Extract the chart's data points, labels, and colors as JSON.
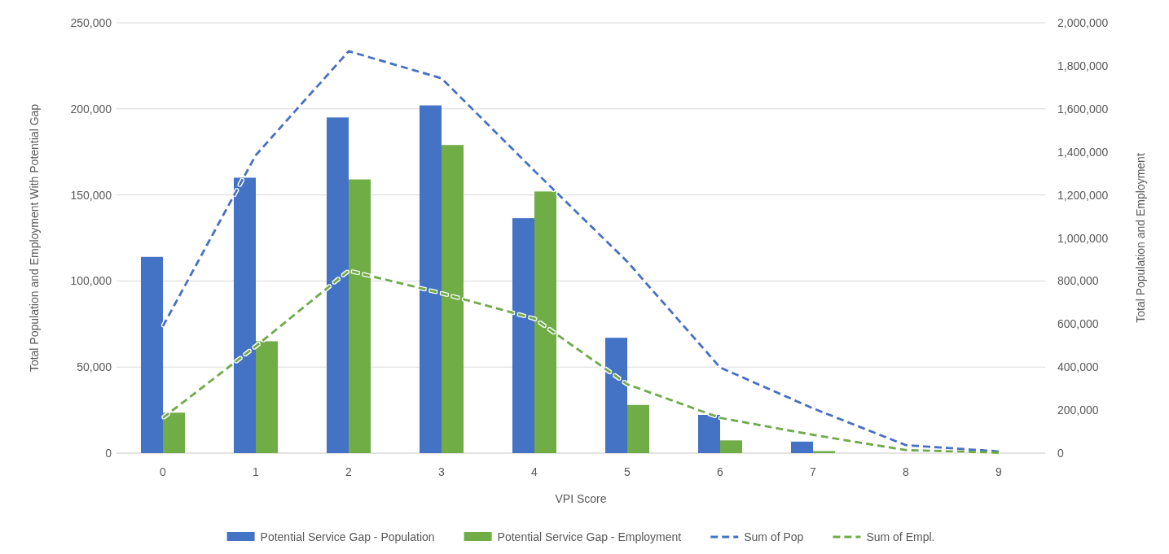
{
  "chart_data": {
    "type": "bar",
    "xlabel": "VPI Score",
    "ylabel": "Total Population and Employment With Potential Gap",
    "y2label": "Total Population and Employment",
    "categories": [
      "0",
      "1",
      "2",
      "3",
      "4",
      "5",
      "6",
      "7",
      "8",
      "9"
    ],
    "series": [
      {
        "name": "Potential Service Gap - Population",
        "color": "#4472c4",
        "values": [
          114000,
          160000,
          195000,
          202000,
          136500,
          67000,
          22200,
          6700,
          0,
          0
        ]
      },
      {
        "name": "Potential Service Gap - Employment",
        "color": "#70ad47",
        "values": [
          23500,
          65000,
          159000,
          179000,
          152000,
          28000,
          7400,
          1200,
          0,
          0
        ]
      },
      {
        "name": "Sum of Pop",
        "type": "line",
        "axis": "y2",
        "line_style": "dashed",
        "color": "#4472c4",
        "values": [
          590000,
          1385000,
          1868000,
          1742000,
          1312000,
          890000,
          398000,
          208000,
          37000,
          8000
        ]
      },
      {
        "name": "Sum of Empl.",
        "type": "line",
        "axis": "y2",
        "line_style": "dashed",
        "color": "#70ad47",
        "values": [
          164000,
          497000,
          848000,
          743000,
          625000,
          320000,
          164000,
          85000,
          14000,
          2000
        ]
      }
    ],
    "ylim": [
      0,
      250000
    ],
    "yticks": [
      0,
      {
        "value": 50000,
        "label": "50,000"
      },
      {
        "value": 100000,
        "label": "100,000"
      },
      {
        "value": 150000,
        "label": "150,000"
      },
      {
        "value": 200000,
        "label": "200,000"
      },
      {
        "value": 250000,
        "label": "250,000"
      }
    ],
    "y2lim": [
      0,
      2000000
    ],
    "y2ticks": [
      0,
      {
        "value": 200000,
        "label": "200,000"
      },
      {
        "value": 400000,
        "label": "400,000"
      },
      {
        "value": 600000,
        "label": "600,000"
      },
      {
        "value": 800000,
        "label": "800,000"
      },
      {
        "value": 1000000,
        "label": "1,000,000"
      },
      {
        "value": 1200000,
        "label": "1,200,000"
      },
      {
        "value": 1400000,
        "label": "1,400,000"
      },
      {
        "value": 1600000,
        "label": "1,600,000"
      },
      {
        "value": 1800000,
        "label": "1,800,000"
      },
      {
        "value": 2000000,
        "label": "2,000,000"
      }
    ],
    "grid": "y",
    "legend": "bottom"
  }
}
